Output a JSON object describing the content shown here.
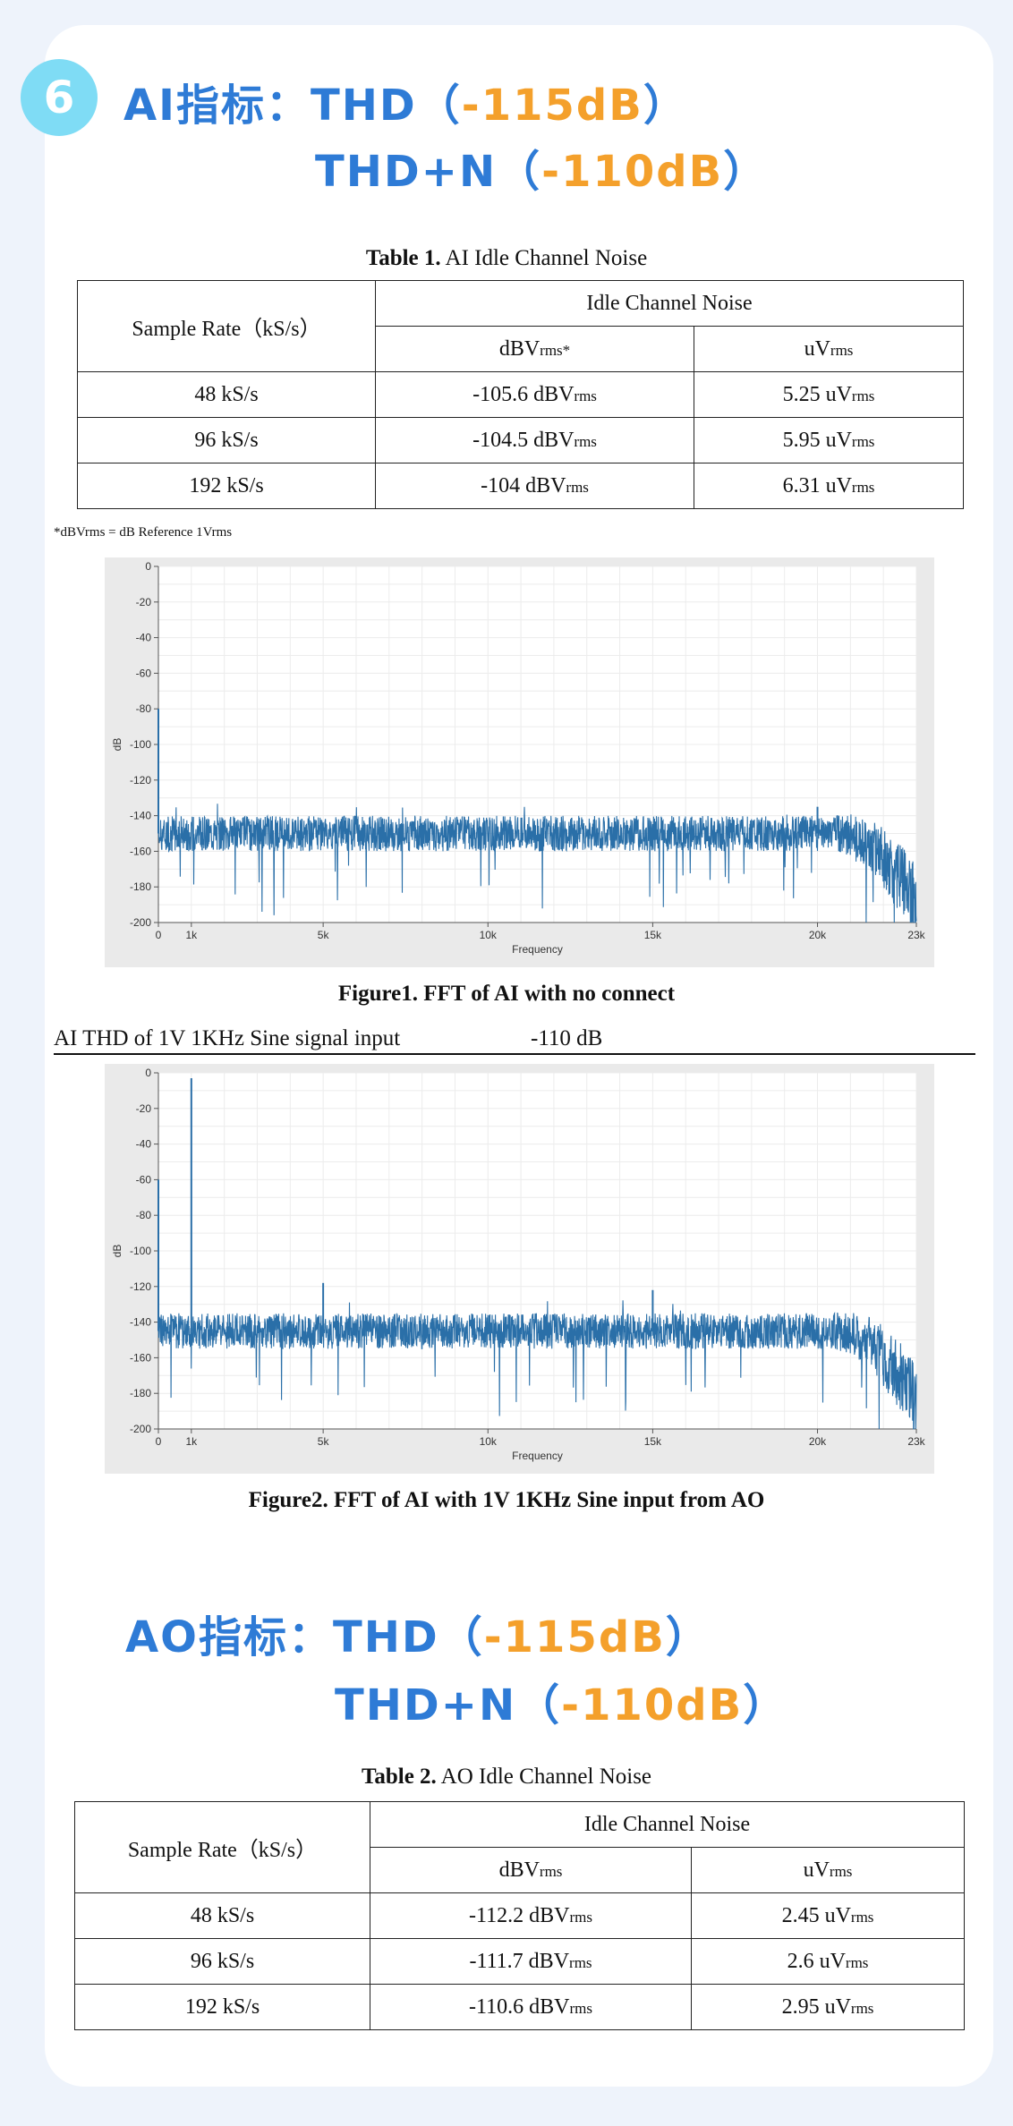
{
  "section_number": "6",
  "ai_heading": {
    "prefix": "AI指标：THD（",
    "thd": "-115dB",
    "close": "）",
    "line2_prefix": "THD+N（",
    "thdn": "-110dB",
    "line2_close": "）"
  },
  "ao_heading": {
    "prefix": "AO指标：THD（",
    "thd": "-115dB",
    "close": "）",
    "line2_prefix": "THD+N（",
    "thdn": "-110dB",
    "line2_close": "）"
  },
  "table1": {
    "caption_bold": "Table 1.",
    "caption_text": " AI Idle Channel Noise",
    "header_rate": "Sample Rate（kS/s）",
    "header_group": "Idle Channel Noise",
    "col_dbv": "dBV",
    "col_dbv_sub": "rms*",
    "col_uv": "uV",
    "col_uv_sub": "rms",
    "rows": [
      {
        "rate": "48 kS/s",
        "dbv": "-105.6 dBV",
        "dbv_sub": "rms",
        "uv": "5.25 uV",
        "uv_sub": "rms"
      },
      {
        "rate": "96 kS/s",
        "dbv": "-104.5 dBV",
        "dbv_sub": "rms",
        "uv": "5.95 uV",
        "uv_sub": "rms"
      },
      {
        "rate": "192 kS/s",
        "dbv": "-104 dBV",
        "dbv_sub": "rms",
        "uv": "6.31 uV",
        "uv_sub": "rms"
      }
    ]
  },
  "footnote": "*dBVrms = dB Reference 1Vrms",
  "table2": {
    "caption_bold": "Table 2.",
    "caption_text": " AO Idle Channel Noise",
    "header_rate": "Sample Rate（kS/s）",
    "header_group": "Idle Channel Noise",
    "col_dbv": "dBV",
    "col_dbv_sub": "rms",
    "col_uv": "uV",
    "col_uv_sub": "rms",
    "rows": [
      {
        "rate": "48 kS/s",
        "dbv": "-112.2 dBV",
        "dbv_sub": "rms",
        "uv": "2.45 uV",
        "uv_sub": "rms"
      },
      {
        "rate": "96 kS/s",
        "dbv": "-111.7 dBV",
        "dbv_sub": "rms",
        "uv": "2.6 uV",
        "uv_sub": "rms"
      },
      {
        "rate": "192 kS/s",
        "dbv": "-110.6 dBV",
        "dbv_sub": "rms",
        "uv": "2.95 uV",
        "uv_sub": "rms"
      }
    ]
  },
  "figure1_caption": "Figure1. FFT of AI with no connect",
  "thd_line": {
    "label": "AI THD of 1V 1KHz Sine signal input",
    "value": "-110 dB"
  },
  "figure2_caption": "Figure2. FFT of AI with 1V 1KHz Sine input from AO",
  "chart_data": [
    {
      "type": "line",
      "xlabel": "Frequency",
      "ylabel": "dB",
      "xlim": [
        0,
        23000
      ],
      "ylim": [
        -200,
        0
      ],
      "x_ticks": [
        "0",
        "1k",
        "5k",
        "10k",
        "15k",
        "20k",
        "23k"
      ],
      "y_ticks": [
        "0",
        "-20",
        "-40",
        "-60",
        "-80",
        "-100",
        "-120",
        "-140",
        "-160",
        "-180",
        "-200"
      ],
      "grid": true,
      "color": "#2a6fa8",
      "noise_floor_db": -150,
      "noise_band_db": [
        -160,
        -140
      ],
      "peaks": [
        {
          "x": 0,
          "y": -80
        },
        {
          "x": 20000,
          "y": -135
        }
      ],
      "rolloff_start": 20500
    },
    {
      "type": "line",
      "xlabel": "Frequency",
      "ylabel": "dB",
      "xlim": [
        0,
        23000
      ],
      "ylim": [
        -200,
        0
      ],
      "x_ticks": [
        "0",
        "1k",
        "5k",
        "10k",
        "15k",
        "20k",
        "23k"
      ],
      "y_ticks": [
        "0",
        "-20",
        "-40",
        "-60",
        "-80",
        "-100",
        "-120",
        "-140",
        "-160",
        "-180",
        "-200"
      ],
      "grid": true,
      "color": "#2a6fa8",
      "noise_floor_db": -145,
      "noise_band_db": [
        -155,
        -135
      ],
      "peaks": [
        {
          "x": 0,
          "y": -60
        },
        {
          "x": 1000,
          "y": -3
        },
        {
          "x": 5000,
          "y": -118
        },
        {
          "x": 15000,
          "y": -122
        }
      ],
      "rolloff_start": 20500
    }
  ]
}
